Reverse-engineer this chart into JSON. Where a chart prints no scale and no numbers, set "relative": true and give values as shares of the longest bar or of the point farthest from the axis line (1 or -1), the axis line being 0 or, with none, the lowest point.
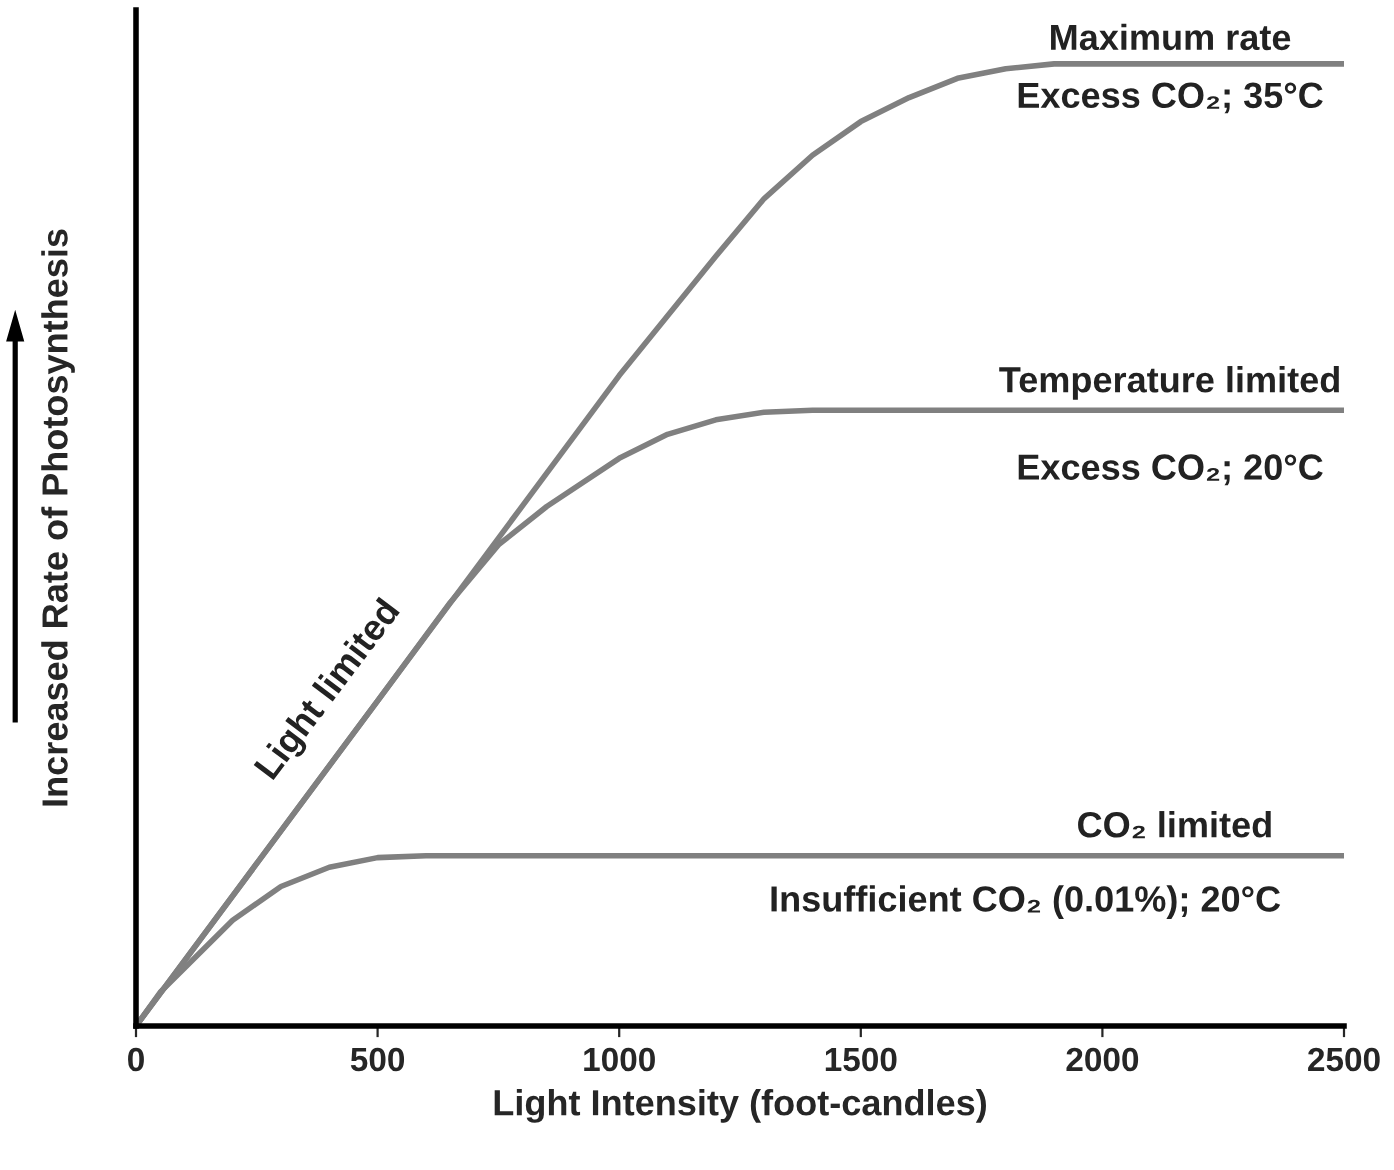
{
  "chart_data": {
    "type": "line",
    "relative": true,
    "xlabel": "Light Intensity (foot-candles)",
    "ylabel": "Increased Rate of Photosynthesis",
    "xlim": [
      0,
      2500
    ],
    "xticks": [
      0,
      500,
      1000,
      1500,
      2000,
      2500
    ],
    "tick_labels": "x",
    "grid": false,
    "legend": false,
    "marker": "none",
    "line_style": "solid",
    "series": [
      {
        "color": "#808080",
        "x": [
          0,
          500,
          1000,
          1200,
          1300,
          1400,
          1500,
          1600,
          1700,
          1800,
          1900,
          2000,
          2500
        ],
        "values": [
          0,
          0.338,
          0.676,
          0.8,
          0.86,
          0.905,
          0.94,
          0.965,
          0.985,
          0.995,
          1,
          1,
          1
        ]
      },
      {
        "color": "#808080",
        "x": [
          0,
          500,
          650,
          750,
          850,
          1000,
          1100,
          1200,
          1300,
          1400,
          2500
        ],
        "values": [
          0,
          0.338,
          0.44,
          0.5,
          0.54,
          0.59,
          0.615,
          0.63,
          0.638,
          0.64,
          0.64
        ]
      },
      {
        "color": "#808080",
        "x": [
          0,
          50,
          100,
          200,
          300,
          400,
          500,
          600,
          2500
        ],
        "values": [
          0,
          0.035,
          0.06,
          0.11,
          0.145,
          0.165,
          0.175,
          0.177,
          0.177
        ]
      }
    ],
    "annotations": [
      "Maximum rate",
      "Excess CO₂; 35°C",
      "Temperature limited",
      "Excess CO₂; 20°C",
      "CO₂ limited",
      "Insufficient CO₂ (0.01%); 20°C",
      "Light limited"
    ]
  }
}
